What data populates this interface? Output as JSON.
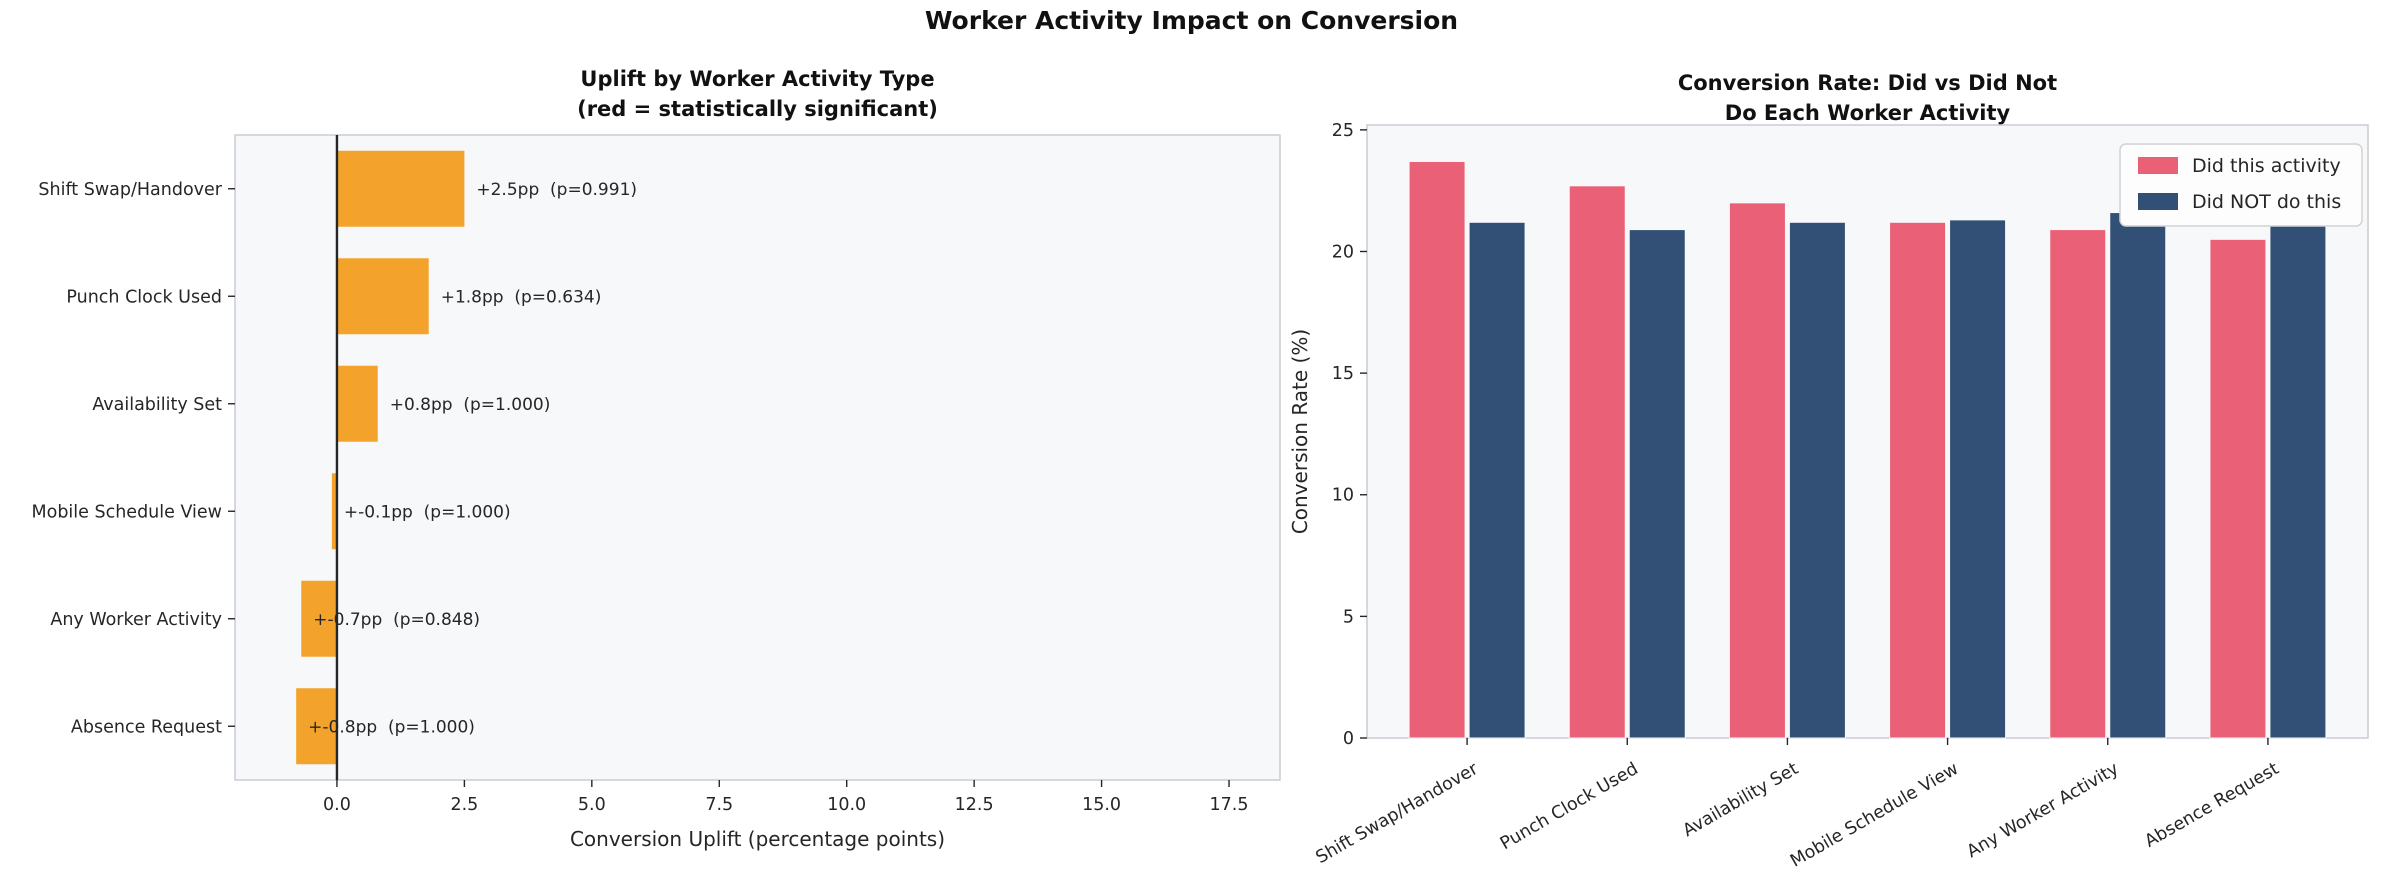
{
  "figure": {
    "title": "Worker Activity Impact on Conversion",
    "background": "#ffffff"
  },
  "styles": {
    "axes_bg": "#f7f8fa",
    "spine_color": "#c9cdd3",
    "tick_color": "#262626",
    "text_color": "#262626",
    "zero_line_color": "#262626",
    "legend_bg": "#fdfdfe",
    "legend_border": "#d2d2d2"
  },
  "chart_data": [
    {
      "id": "uplift-by-activity",
      "type": "bar",
      "orientation": "horizontal",
      "title": "Uplift by Worker Activity Type\n(red = statistically significant)",
      "title_lines": [
        "Uplift by Worker Activity Type",
        "(red = statistically significant)"
      ],
      "categories": [
        "Shift Swap/Handover",
        "Punch Clock Used",
        "Availability Set",
        "Mobile Schedule View",
        "Any Worker Activity",
        "Absence Request"
      ],
      "values": [
        2.5,
        1.8,
        0.8,
        -0.1,
        -0.7,
        -0.8
      ],
      "p_values": [
        0.991,
        0.634,
        1.0,
        1.0,
        0.848,
        1.0
      ],
      "bar_labels": [
        "+2.5pp  (p=0.991)",
        "+1.8pp  (p=0.634)",
        "+0.8pp  (p=1.000)",
        "+-0.1pp  (p=1.000)",
        "+-0.7pp  (p=0.848)",
        "+-0.8pp  (p=1.000)"
      ],
      "xlabel": "Conversion Uplift (percentage points)",
      "xlim": [
        -2,
        18.5
      ],
      "xticks": [
        0.0,
        2.5,
        5.0,
        7.5,
        10.0,
        12.5,
        15.0,
        17.5
      ],
      "xtick_labels": [
        "0.0",
        "2.5",
        "5.0",
        "7.5",
        "10.0",
        "12.5",
        "15.0",
        "17.5"
      ],
      "bar_color": "#f3a32b",
      "zero_line": true,
      "grid": false,
      "legend": null
    },
    {
      "id": "conversion-did-vs-didnot",
      "type": "bar",
      "orientation": "vertical",
      "grouped": true,
      "title": "Conversion Rate: Did vs Did Not\nDo Each Worker Activity",
      "title_lines": [
        "Conversion Rate: Did vs Did Not",
        "Do Each Worker Activity"
      ],
      "categories": [
        "Shift Swap/Handover",
        "Punch Clock Used",
        "Availability Set",
        "Mobile Schedule View",
        "Any Worker Activity",
        "Absence Request"
      ],
      "series": [
        {
          "name": "Did this activity",
          "color": "#ea6076",
          "values": [
            23.7,
            22.7,
            22.0,
            21.2,
            20.9,
            20.5
          ]
        },
        {
          "name": "Did NOT do this",
          "color": "#325076",
          "values": [
            21.2,
            20.9,
            21.2,
            21.3,
            21.6,
            21.3
          ]
        }
      ],
      "ylabel": "Conversion Rate (%)",
      "ylim": [
        0,
        25.2
      ],
      "yticks": [
        0,
        5,
        10,
        15,
        20,
        25
      ],
      "ytick_labels": [
        "0",
        "5",
        "10",
        "15",
        "20",
        "25"
      ],
      "xtick_label_rotation": 30,
      "legend_position": "upper right",
      "grid": false
    }
  ]
}
